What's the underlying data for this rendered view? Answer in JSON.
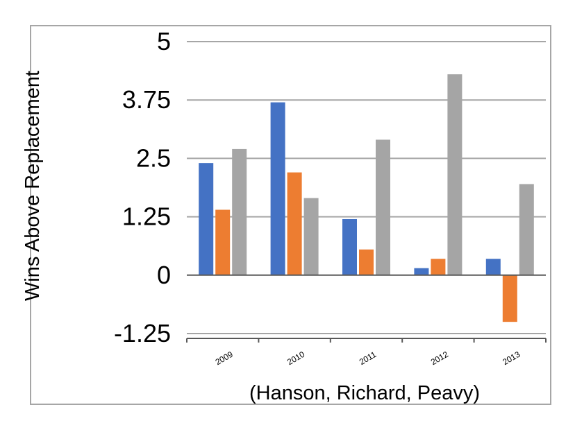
{
  "chart_data": {
    "type": "bar",
    "title": "",
    "xlabel": "(Hanson, Richard, Peavy)",
    "ylabel": "Wins Above Replacement",
    "categories": [
      "2009",
      "2010",
      "2011",
      "2012",
      "2013"
    ],
    "series": [
      {
        "values": [
          2.4,
          3.7,
          1.2,
          0.15,
          0.35
        ],
        "color": "#4472c4"
      },
      {
        "values": [
          1.4,
          2.2,
          0.55,
          0.35,
          -1.0
        ],
        "color": "#ed7d31"
      },
      {
        "values": [
          2.7,
          1.65,
          2.9,
          4.3,
          1.95
        ],
        "color": "#a5a5a5"
      }
    ],
    "yticks": [
      "5",
      "3.75",
      "2.5",
      "1.25",
      "0",
      "-1.25"
    ],
    "ytick_values": [
      5,
      3.75,
      2.5,
      1.25,
      0,
      -1.25
    ],
    "ylim": [
      -1.25,
      5
    ],
    "grid": true,
    "legend": "none"
  }
}
